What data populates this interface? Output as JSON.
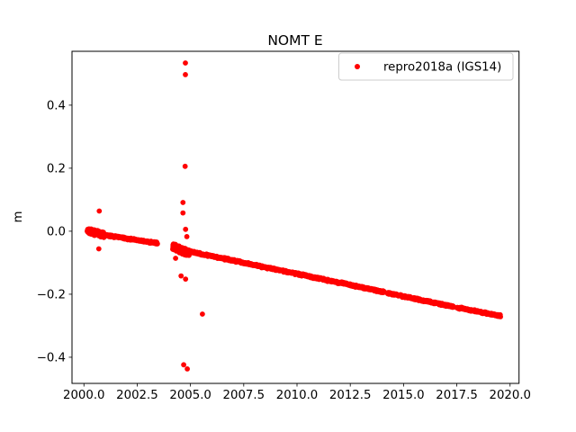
{
  "chart_data": {
    "type": "scatter",
    "title": "NOMT E",
    "xlabel": "",
    "ylabel": "m",
    "xlim": [
      1999.44,
      2020.42
    ],
    "ylim": [
      -0.483,
      0.571
    ],
    "grid": false,
    "xtick_values": [
      2000.0,
      2002.5,
      2005.0,
      2007.5,
      2010.0,
      2012.5,
      2015.0,
      2017.5,
      2020.0
    ],
    "xtick_labels": [
      "2000.0",
      "2002.5",
      "2005.0",
      "2007.5",
      "2010.0",
      "2012.5",
      "2015.0",
      "2017.5",
      "2020.0"
    ],
    "ytick_values": [
      0.4,
      0.2,
      0.0,
      -0.2,
      -0.4
    ],
    "ytick_labels": [
      "0.4",
      "0.2",
      "0.0",
      "−0.2",
      "−0.4"
    ],
    "legend": {
      "label": "repro2018a (IGS14)",
      "location": "upper right",
      "marker": "dot",
      "marker_color": "#ff0000",
      "border_color": "#cccccc",
      "background": "#ffffff"
    },
    "series": [
      {
        "name": "repro2018a (IGS14)",
        "color": "#ff0000",
        "marker": "dot",
        "trend_segments": [
          {
            "x_start": 2000.16,
            "x_end": 2000.95,
            "y_start": 0.002,
            "y_end": -0.012,
            "spread": 0.01,
            "step": 0.004
          },
          {
            "x_start": 2000.95,
            "x_end": 2003.45,
            "y_start": -0.012,
            "y_end": -0.038,
            "spread": 0.0035,
            "step": 0.01
          },
          {
            "x_start": 2004.17,
            "x_end": 2004.93,
            "y_start": -0.05,
            "y_end": -0.07,
            "spread": 0.012,
            "step": 0.004
          },
          {
            "x_start": 2004.93,
            "x_end": 2014.1,
            "y_start": -0.064,
            "y_end": -0.193,
            "spread": 0.004,
            "step": 0.012
          },
          {
            "x_start": 2014.25,
            "x_end": 2017.35,
            "y_start": -0.196,
            "y_end": -0.24,
            "spread": 0.004,
            "step": 0.012
          },
          {
            "x_start": 2017.5,
            "x_end": 2019.55,
            "y_start": -0.242,
            "y_end": -0.269,
            "spread": 0.004,
            "step": 0.012
          }
        ],
        "outliers": [
          {
            "x": 2000.72,
            "y": 0.064
          },
          {
            "x": 2000.7,
            "y": -0.056
          },
          {
            "x": 2004.76,
            "y": 0.534
          },
          {
            "x": 2004.76,
            "y": 0.497
          },
          {
            "x": 2004.75,
            "y": 0.206
          },
          {
            "x": 2004.65,
            "y": 0.091
          },
          {
            "x": 2004.65,
            "y": 0.058
          },
          {
            "x": 2004.77,
            "y": 0.006
          },
          {
            "x": 2004.83,
            "y": -0.017
          },
          {
            "x": 2004.3,
            "y": -0.086
          },
          {
            "x": 2004.56,
            "y": -0.142
          },
          {
            "x": 2004.77,
            "y": -0.152
          },
          {
            "x": 2004.68,
            "y": -0.424
          },
          {
            "x": 2004.85,
            "y": -0.437
          },
          {
            "x": 2005.56,
            "y": -0.263
          }
        ]
      }
    ],
    "colors": {
      "marker": "#ff0000",
      "axis": "#000000",
      "text": "#000000",
      "background": "#ffffff"
    }
  }
}
